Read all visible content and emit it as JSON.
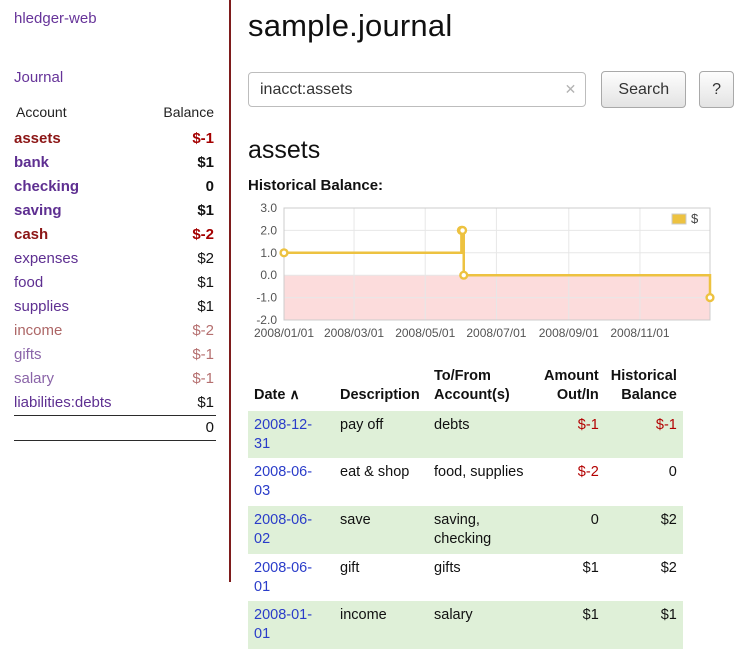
{
  "sidebar": {
    "app_title": "hledger-web",
    "nav": {
      "journal": "Journal"
    },
    "accounts": {
      "header_account": "Account",
      "header_balance": "Balance",
      "rows": [
        {
          "name": "assets",
          "balance": "$-1"
        },
        {
          "name": "bank",
          "balance": "$1"
        },
        {
          "name": "checking",
          "balance": "0"
        },
        {
          "name": "saving",
          "balance": "$1"
        },
        {
          "name": "cash",
          "balance": "$-2"
        },
        {
          "name": "expenses",
          "balance": "$2"
        },
        {
          "name": "food",
          "balance": "$1"
        },
        {
          "name": "supplies",
          "balance": "$1"
        },
        {
          "name": "income",
          "balance": "$-2"
        },
        {
          "name": "gifts",
          "balance": "$-1"
        },
        {
          "name": "salary",
          "balance": "$-1"
        },
        {
          "name": "liabilities:debts",
          "balance": "$1"
        }
      ],
      "total": "0"
    }
  },
  "main": {
    "title": "sample.journal",
    "search": {
      "value": "inacct:assets",
      "clear_icon": "✕",
      "button_label": "Search",
      "help_label": "?"
    },
    "account_heading": "assets",
    "chart_title": "Historical Balance:",
    "register": {
      "headers": {
        "date": "Date",
        "sort": "∧",
        "description": "Description",
        "accounts": "To/From Account(s)",
        "amount": "Amount Out/In",
        "balance": "Historical Balance"
      },
      "rows": [
        {
          "date": "2008-12-31",
          "description": "pay off",
          "accounts": "debts",
          "amount": "$-1",
          "balance": "$-1"
        },
        {
          "date": "2008-06-03",
          "description": "eat & shop",
          "accounts": "food, supplies",
          "amount": "$-2",
          "balance": "0"
        },
        {
          "date": "2008-06-02",
          "description": "save",
          "accounts": "saving, checking",
          "amount": "0",
          "balance": "$2"
        },
        {
          "date": "2008-06-01",
          "description": "gift",
          "accounts": "gifts",
          "amount": "$1",
          "balance": "$2"
        },
        {
          "date": "2008-01-01",
          "description": "income",
          "accounts": "salary",
          "amount": "$1",
          "balance": "$1"
        }
      ]
    }
  },
  "chart_data": {
    "type": "line",
    "title": "Historical Balance:",
    "step": true,
    "series": [
      {
        "name": "$",
        "points": [
          [
            "2008-01-01",
            1
          ],
          [
            "2008-06-01",
            2
          ],
          [
            "2008-06-02",
            2
          ],
          [
            "2008-06-03",
            0
          ],
          [
            "2008-12-31",
            -1
          ]
        ]
      }
    ],
    "xrange": [
      "2008-01-01",
      "2008-12-31"
    ],
    "ylim": [
      -2.0,
      3.0
    ],
    "yticks": [
      3.0,
      2.0,
      1.0,
      0.0,
      -1.0,
      -2.0
    ],
    "xticks": [
      "2008/01/01",
      "2008/03/01",
      "2008/05/01",
      "2008/07/01",
      "2008/09/01",
      "2008/11/01"
    ],
    "legend_position": "top-right",
    "grid": true,
    "line_color": "#edc240",
    "negative_region_color": "#fcdcdc"
  }
}
